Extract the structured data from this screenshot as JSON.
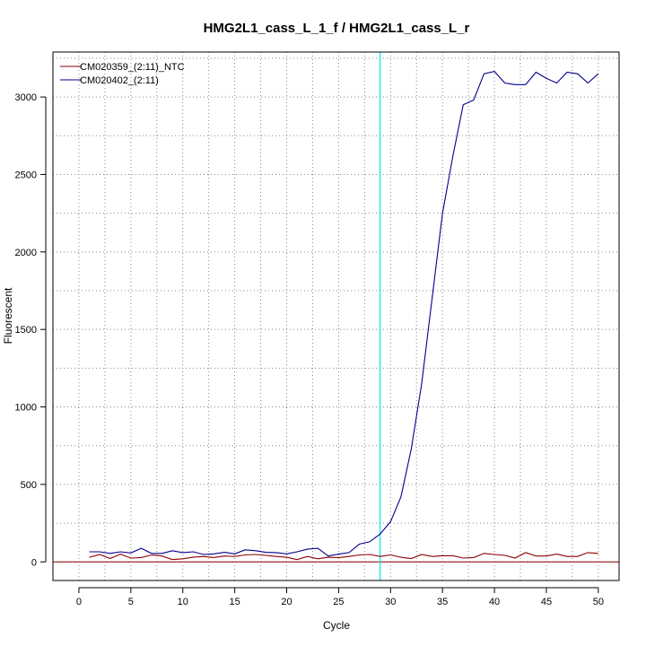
{
  "chart_data": {
    "type": "line",
    "title": "HMG2L1_cass_L_1_f / HMG2L1_cass_L_r",
    "xlabel": "Cycle",
    "ylabel": "Fluorescent",
    "xlim": [
      -2.5,
      52
    ],
    "ylim": [
      -120,
      3290
    ],
    "x_ticks": [
      0,
      5,
      10,
      15,
      20,
      25,
      30,
      35,
      40,
      45,
      50
    ],
    "y_ticks": [
      0,
      500,
      1000,
      1500,
      2000,
      2500,
      3000
    ],
    "grid": true,
    "legend_position": "top-left",
    "threshold": {
      "y": 0,
      "color": "#8b0000"
    },
    "vertical_marker": {
      "x": 29,
      "color": "#00e5ee"
    },
    "x": [
      1,
      2,
      3,
      4,
      5,
      6,
      7,
      8,
      9,
      10,
      11,
      12,
      13,
      14,
      15,
      16,
      17,
      18,
      19,
      20,
      21,
      22,
      23,
      24,
      25,
      26,
      27,
      28,
      29,
      30,
      31,
      32,
      33,
      34,
      35,
      36,
      37,
      38,
      39,
      40,
      41,
      42,
      43,
      44,
      45,
      46,
      47,
      48,
      49,
      50
    ],
    "series": [
      {
        "name": "CM020359_(2:11)_NTC",
        "color": "#8b0000",
        "values": [
          30,
          48,
          22,
          50,
          25,
          28,
          45,
          38,
          15,
          20,
          30,
          35,
          28,
          38,
          35,
          45,
          48,
          42,
          35,
          30,
          15,
          35,
          20,
          30,
          28,
          35,
          45,
          48,
          35,
          45,
          30,
          22,
          48,
          35,
          40,
          40,
          25,
          28,
          55,
          48,
          42,
          25,
          60,
          38,
          38,
          50,
          35,
          35,
          60,
          55
        ]
      },
      {
        "name": "CM020402_(2:11)",
        "color": "#00008b",
        "values": [
          65,
          65,
          55,
          65,
          58,
          88,
          55,
          55,
          72,
          60,
          65,
          48,
          52,
          62,
          52,
          78,
          72,
          62,
          60,
          52,
          65,
          82,
          88,
          38,
          50,
          60,
          115,
          130,
          180,
          260,
          420,
          730,
          1150,
          1700,
          2250,
          2620,
          2950,
          2980,
          3150,
          3165,
          3090,
          3080,
          3080,
          3160,
          3120,
          3090,
          3160,
          3150,
          3090,
          3150
        ]
      }
    ]
  }
}
